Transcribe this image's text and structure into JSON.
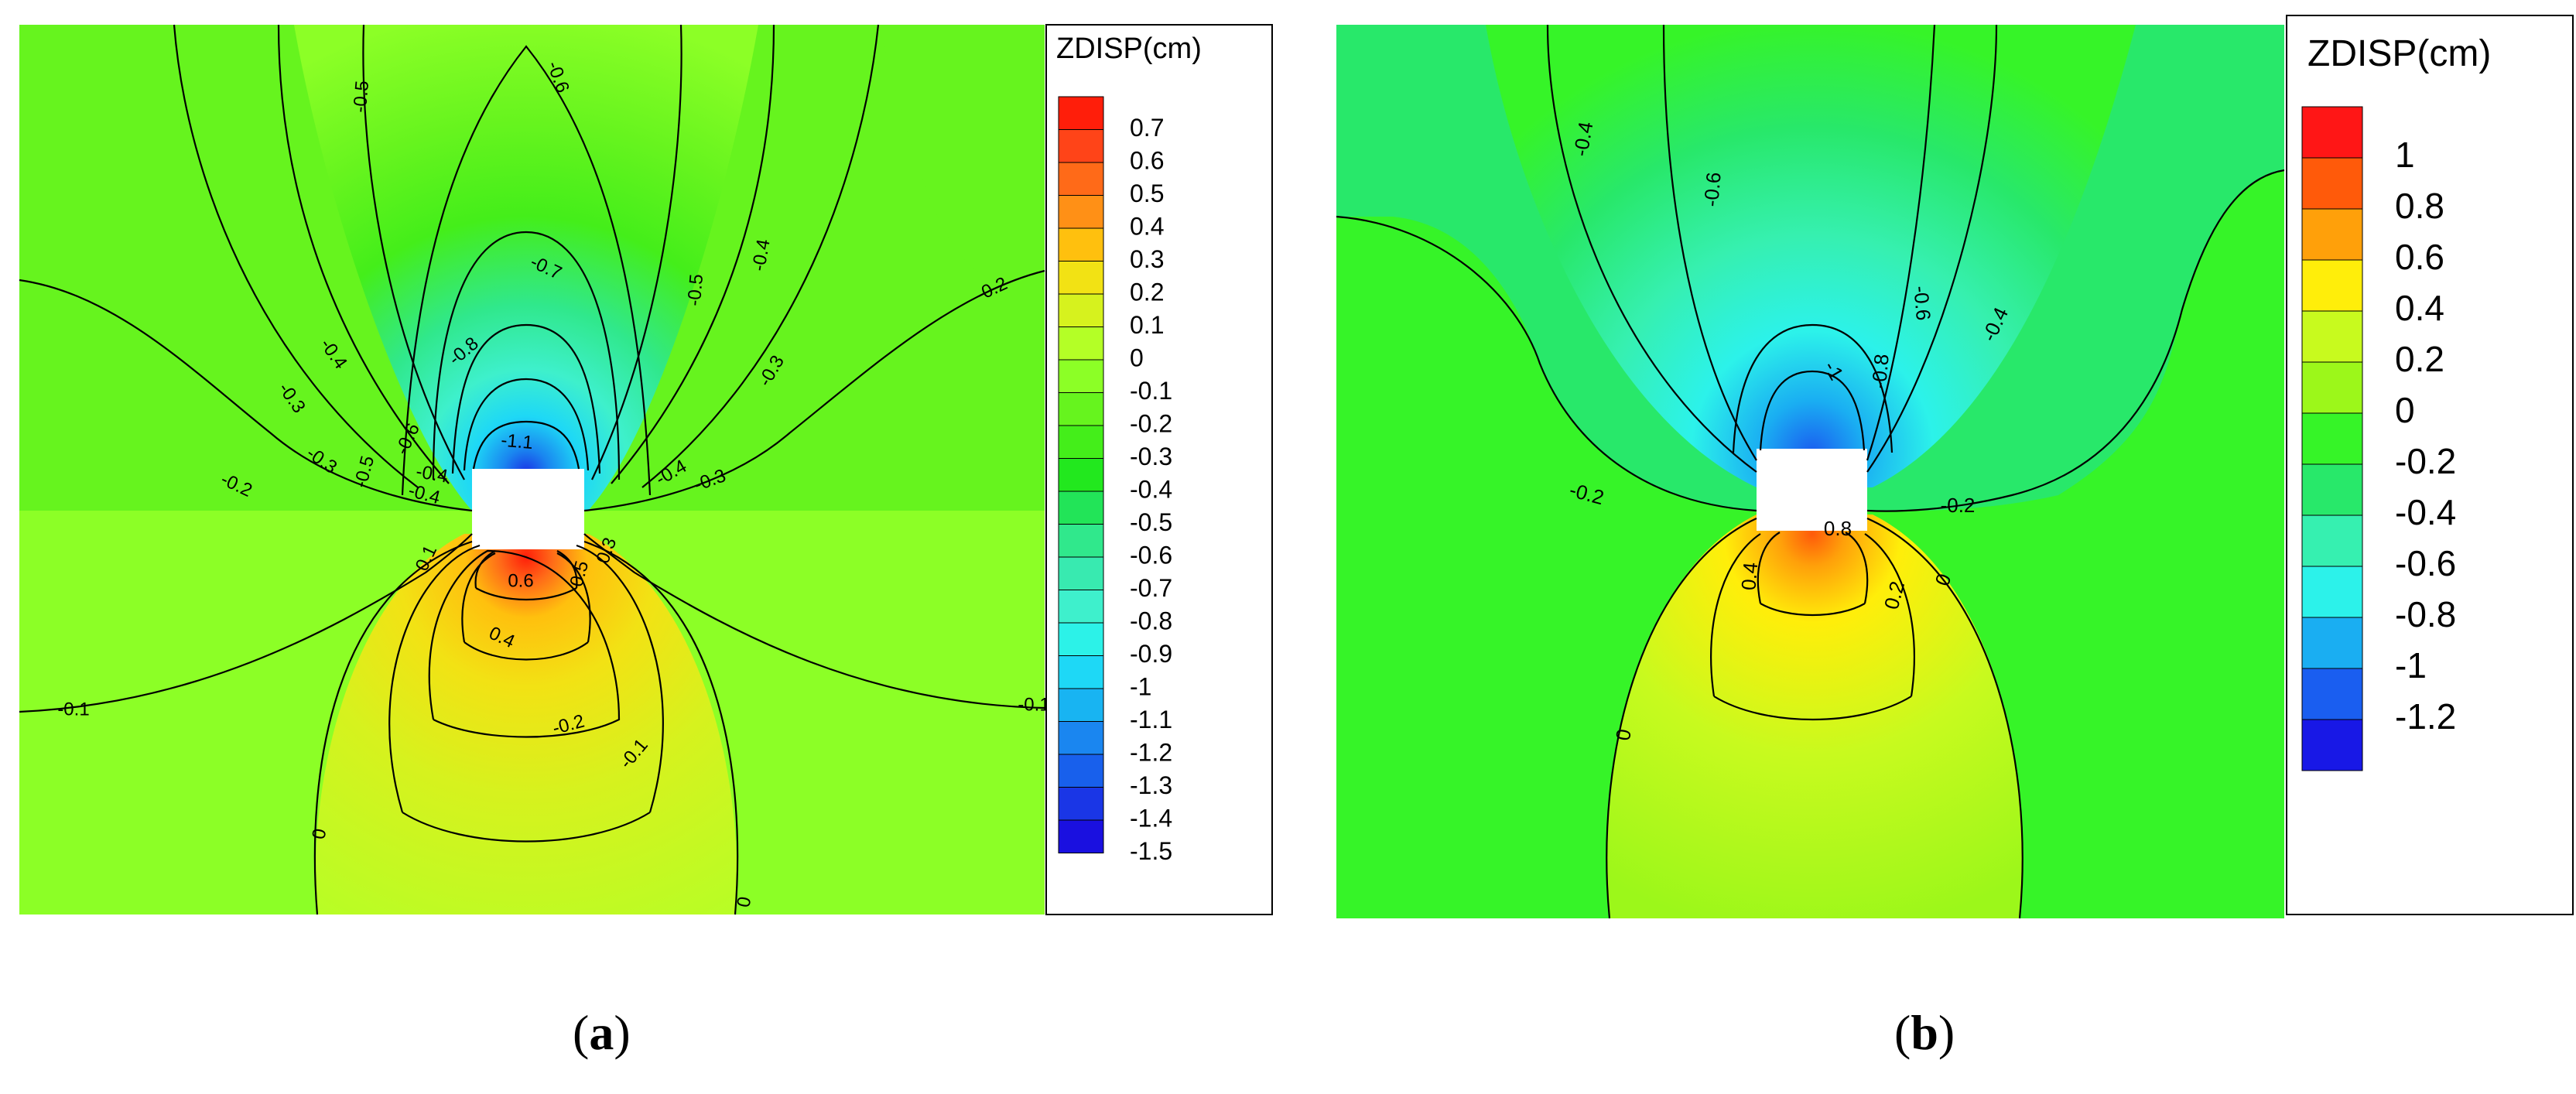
{
  "chart_data": [
    {
      "type": "contour",
      "panel_label": "a",
      "colorbar": {
        "title": "ZDISP(cm)",
        "levels": [
          0.7,
          0.6,
          0.5,
          0.4,
          0.3,
          0.2,
          0.1,
          0,
          -0.1,
          -0.2,
          -0.3,
          -0.4,
          -0.5,
          -0.6,
          -0.7,
          -0.8,
          -0.9,
          -1,
          -1.1,
          -1.2,
          -1.3,
          -1.4,
          -1.5
        ],
        "tick_labels": [
          "0.7",
          "0.6",
          "0.5",
          "0.4",
          "0.3",
          "0.2",
          "0.1",
          "0",
          "-0.1",
          "-0.2",
          "-0.3",
          "-0.4",
          "-0.5",
          "-0.6",
          "-0.7",
          "-0.8",
          "-0.9",
          "-1",
          "-1.1",
          "-1.2",
          "-1.3",
          "-1.4",
          "-1.5"
        ],
        "colors": [
          "#ff1e0a",
          "#ff4418",
          "#ff6a18",
          "#ff9016",
          "#ffc00e",
          "#f2e214",
          "#d6f21e",
          "#b4ff26",
          "#8cff26",
          "#66f41e",
          "#44ee1a",
          "#22e81e",
          "#22e458",
          "#30e88c",
          "#38eab0",
          "#3ef0cc",
          "#2cf2e8",
          "#1ed8f6",
          "#18b4f2",
          "#1a86f0",
          "#1860ec",
          "#1a36e6",
          "#1a10e0"
        ]
      },
      "contour_labels": [
        "-0.6",
        "-0.5",
        "-0.5",
        "-0.4",
        "-0.7",
        "-0.5",
        "-0.4",
        "-0.2",
        "-0.8",
        "-0.4",
        "-0.3",
        "-0.3",
        "-0.3",
        "-0.6",
        "-1.1",
        "-0.4",
        "-0.3",
        "-0.2",
        "-0.4",
        "-0.1",
        "0.1",
        "0.6",
        "0.5",
        "0.3",
        "0.4",
        "-0.2",
        "-0.1",
        "-0.1",
        "-0.1",
        "0",
        "0"
      ]
    },
    {
      "type": "contour",
      "panel_label": "b",
      "colorbar": {
        "title": "ZDISP(cm)",
        "levels": [
          1,
          0.8,
          0.6,
          0.4,
          0.2,
          0,
          -0.2,
          -0.4,
          -0.6,
          -0.8,
          -1,
          -1.2
        ],
        "tick_labels": [
          "1",
          "0.8",
          "0.6",
          "0.4",
          "0.2",
          "0",
          "-0.2",
          "-0.4",
          "-0.6",
          "-0.8",
          "-1",
          "-1.2"
        ],
        "colors": [
          "#ff1616",
          "#ff5a0a",
          "#ffa00a",
          "#ffee0a",
          "#c8fa1e",
          "#9cf71a",
          "#36f428",
          "#28e86a",
          "#36f0b0",
          "#2cf2ea",
          "#1aaef2",
          "#1a5ef0",
          "#1818e6"
        ]
      },
      "contour_labels": [
        "-0.4",
        "-0.6",
        "-0.6",
        "-0.4",
        "-1",
        "-0.8",
        "-0.2",
        "-0.2",
        "0.8",
        "0.4",
        "0.2",
        "0",
        "0"
      ]
    }
  ],
  "captions": {
    "a": {
      "open": "(",
      "letter": "a",
      "close": ")"
    },
    "b": {
      "open": "(",
      "letter": "b",
      "close": ")"
    }
  }
}
